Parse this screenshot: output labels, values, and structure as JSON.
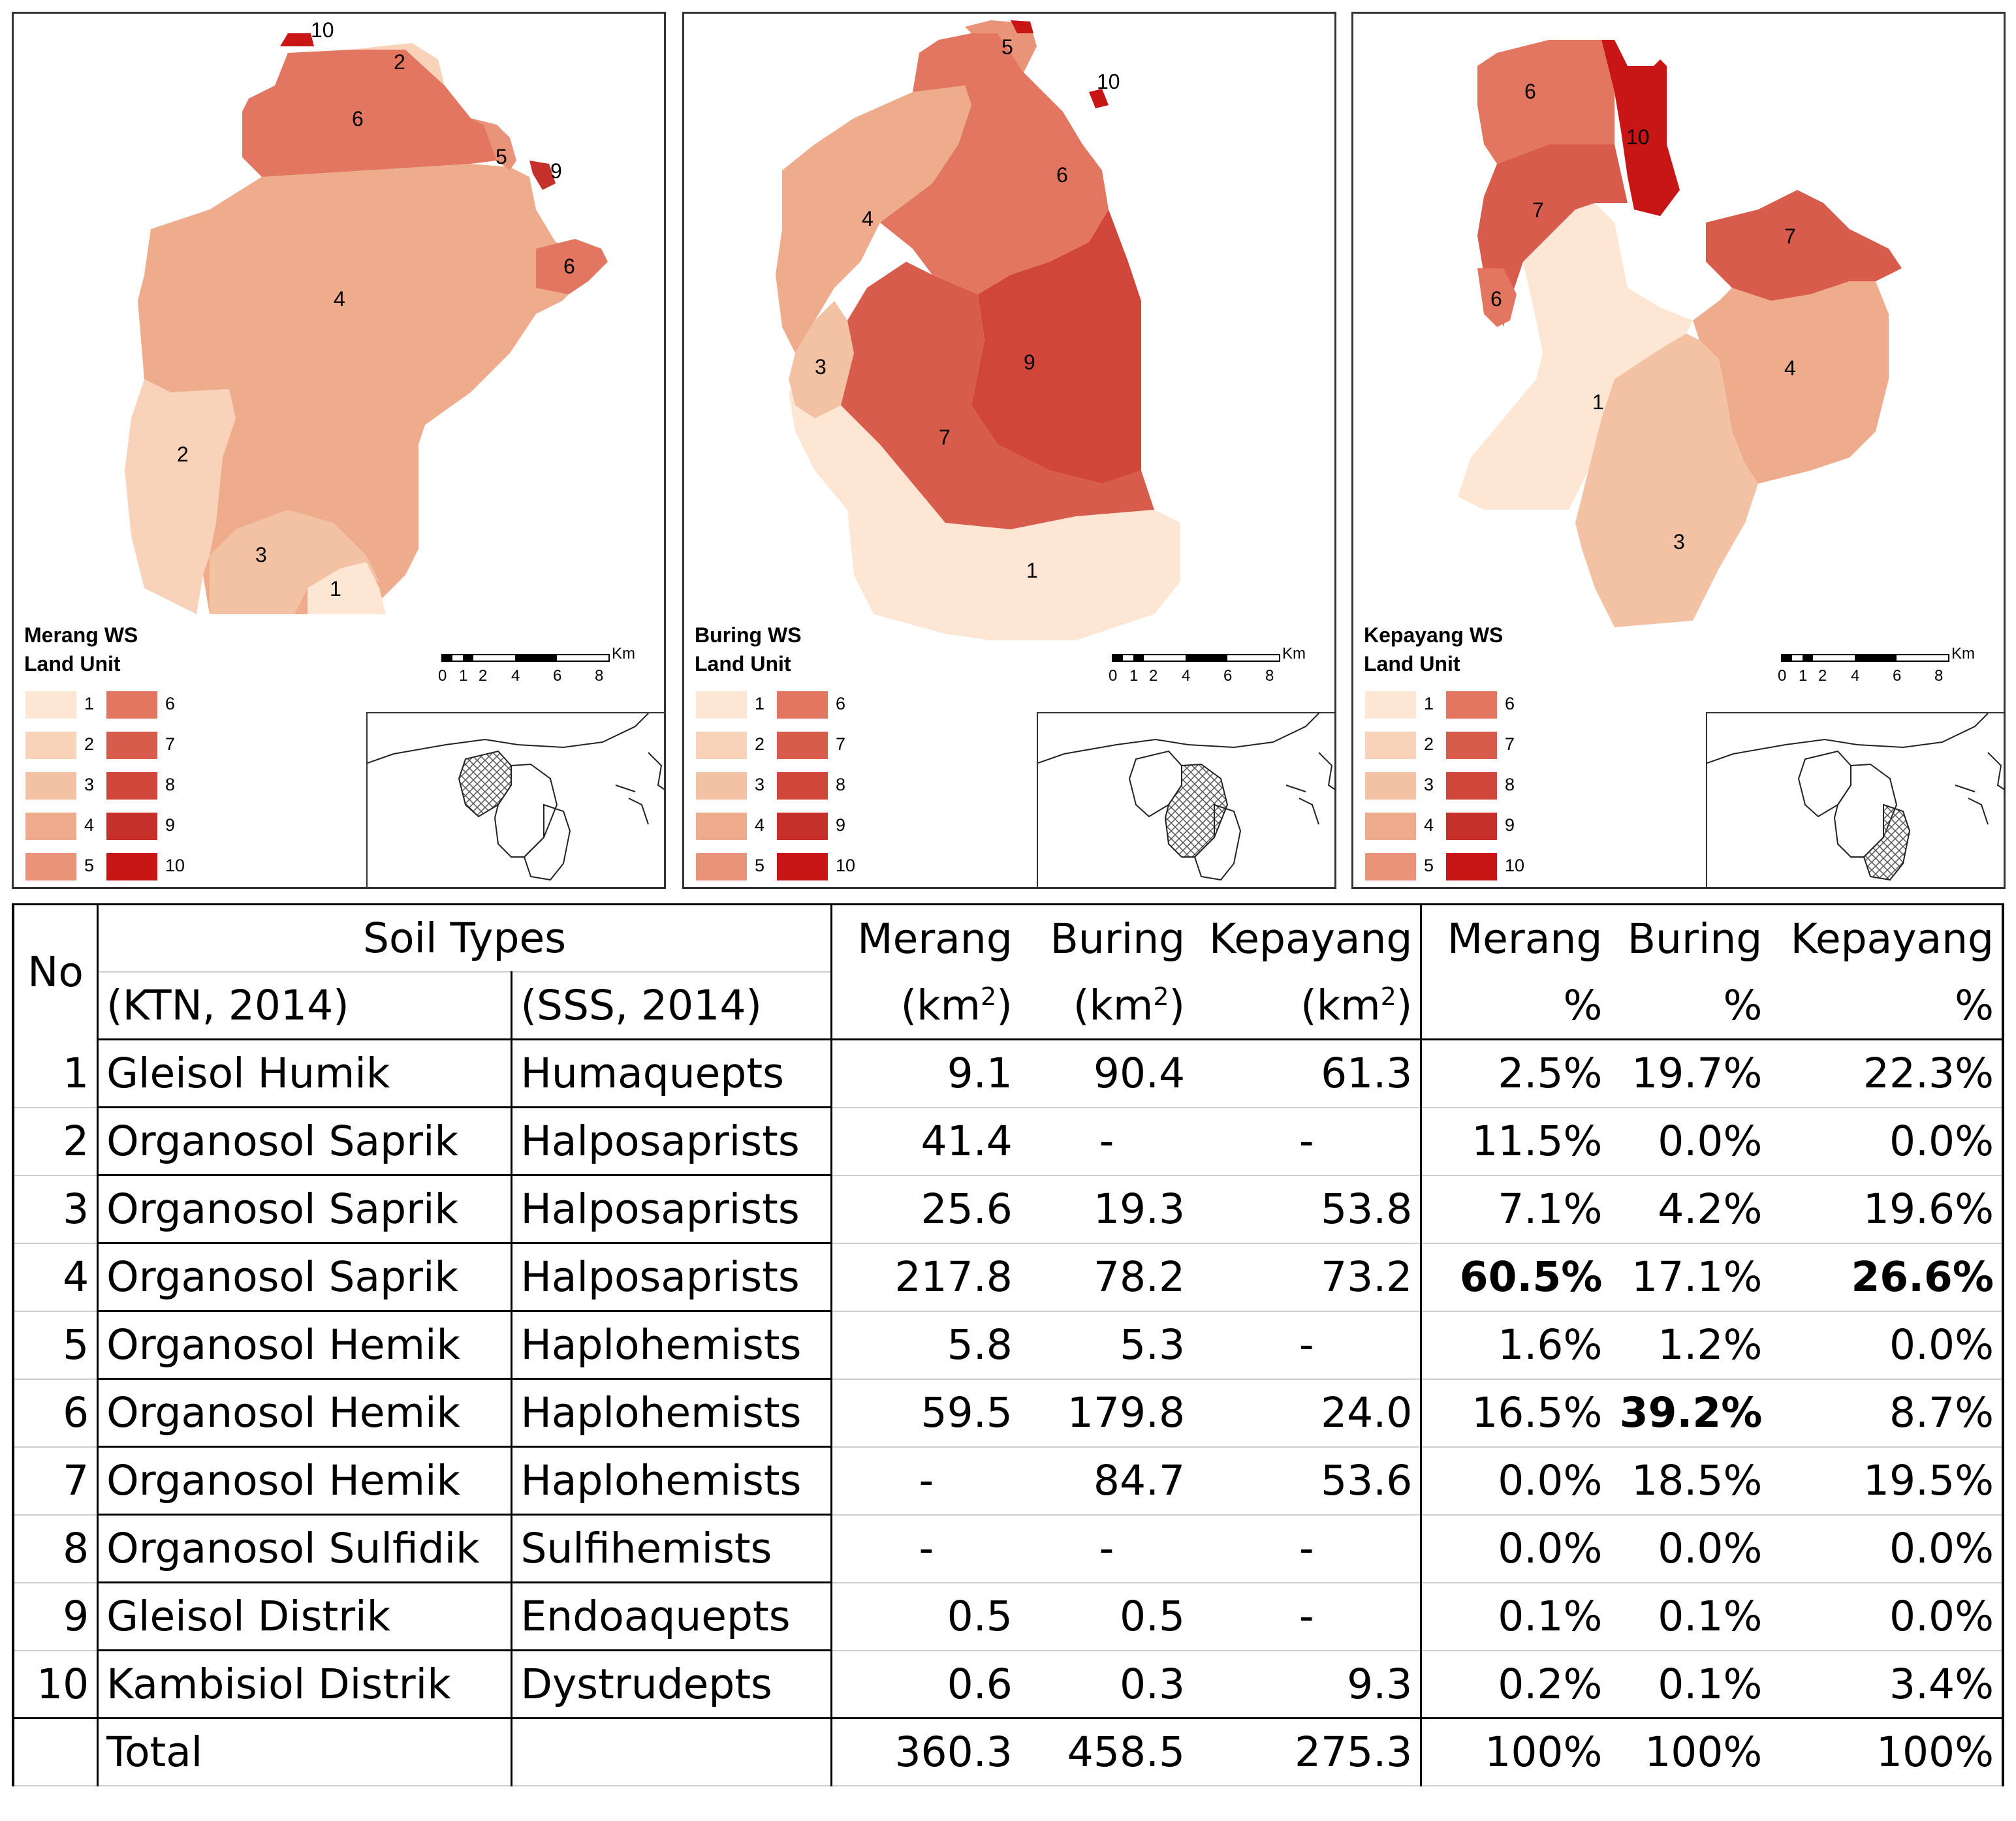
{
  "legend_colors": [
    "#fde7d4",
    "#f8d3b9",
    "#f3c1a3",
    "#eeac8d",
    "#e99378",
    "#e27660",
    "#d85c4c",
    "#d0463b",
    "#c6302b",
    "#c81515"
  ],
  "maps": [
    {
      "title_line1": "Merang WS",
      "title_line2": "Land Unit",
      "region_labels": [
        "10",
        "2",
        "6",
        "5",
        "9",
        "6",
        "4",
        "2",
        "3",
        "1"
      ],
      "legend_labels": [
        "1",
        "2",
        "3",
        "4",
        "5",
        "6",
        "7",
        "8",
        "9",
        "10"
      ],
      "scale_unit": "Km",
      "scale_ticks": [
        "0",
        "1",
        "2",
        "4",
        "6",
        "8"
      ]
    },
    {
      "title_line1": "Buring WS",
      "title_line2": "Land Unit",
      "region_labels": [
        "5",
        "10",
        "6",
        "4",
        "3",
        "9",
        "7",
        "1"
      ],
      "legend_labels": [
        "1",
        "2",
        "3",
        "4",
        "5",
        "6",
        "7",
        "8",
        "9",
        "10"
      ],
      "scale_unit": "Km",
      "scale_ticks": [
        "0",
        "1",
        "2",
        "4",
        "6",
        "8"
      ]
    },
    {
      "title_line1": "Kepayang WS",
      "title_line2": "Land Unit",
      "region_labels": [
        "6",
        "10",
        "7",
        "7",
        "6",
        "4",
        "1",
        "3"
      ],
      "legend_labels": [
        "1",
        "2",
        "3",
        "4",
        "5",
        "6",
        "7",
        "8",
        "9",
        "10"
      ],
      "scale_unit": "Km",
      "scale_ticks": [
        "0",
        "1",
        "2",
        "4",
        "6",
        "8"
      ]
    }
  ],
  "table": {
    "header_no": "No",
    "header_soil_types": "Soil Types",
    "header_ktn": "(KTN, 2014)",
    "header_sss": "(SSS, 2014)",
    "area_cols": [
      "Merang",
      "Buring",
      "Kepayang"
    ],
    "area_unit_pre": "(km",
    "area_unit_sup": "2",
    "area_unit_post": ")",
    "pct_cols": [
      "Merang",
      "Buring",
      "Kepayang"
    ],
    "pct_unit": "%",
    "rows": [
      {
        "no": "1",
        "ktn": "Gleisol Humik",
        "sss": "Humaquepts",
        "merang": "9.1",
        "buring": "90.4",
        "kepayang": "61.3",
        "pm": "2.5%",
        "pb": "19.7%",
        "pk": "22.3%"
      },
      {
        "no": "2",
        "ktn": "Organosol Saprik",
        "sss": "Halposaprists",
        "merang": "41.4",
        "buring": "-",
        "kepayang": "-",
        "pm": "11.5%",
        "pb": "0.0%",
        "pk": "0.0%"
      },
      {
        "no": "3",
        "ktn": "Organosol Saprik",
        "sss": "Halposaprists",
        "merang": "25.6",
        "buring": "19.3",
        "kepayang": "53.8",
        "pm": "7.1%",
        "pb": "4.2%",
        "pk": "19.6%"
      },
      {
        "no": "4",
        "ktn": "Organosol Saprik",
        "sss": "Halposaprists",
        "merang": "217.8",
        "buring": "78.2",
        "kepayang": "73.2",
        "pm": "60.5%",
        "pb": "17.1%",
        "pk": "26.6%"
      },
      {
        "no": "5",
        "ktn": "Organosol Hemik",
        "sss": "Haplohemists",
        "merang": "5.8",
        "buring": "5.3",
        "kepayang": "-",
        "pm": "1.6%",
        "pb": "1.2%",
        "pk": "0.0%"
      },
      {
        "no": "6",
        "ktn": "Organosol Hemik",
        "sss": "Haplohemists",
        "merang": "59.5",
        "buring": "179.8",
        "kepayang": "24.0",
        "pm": "16.5%",
        "pb": "39.2%",
        "pk": "8.7%"
      },
      {
        "no": "7",
        "ktn": "Organosol Hemik",
        "sss": "Haplohemists",
        "merang": "-",
        "buring": "84.7",
        "kepayang": "53.6",
        "pm": "0.0%",
        "pb": "18.5%",
        "pk": "19.5%"
      },
      {
        "no": "8",
        "ktn": "Organosol Sulfidik",
        "sss": "Sulfihemists",
        "merang": "-",
        "buring": "-",
        "kepayang": "-",
        "pm": "0.0%",
        "pb": "0.0%",
        "pk": "0.0%"
      },
      {
        "no": "9",
        "ktn": "Gleisol Distrik",
        "sss": "Endoaquepts",
        "merang": "0.5",
        "buring": "0.5",
        "kepayang": "-",
        "pm": "0.1%",
        "pb": "0.1%",
        "pk": "0.0%"
      },
      {
        "no": "10",
        "ktn": "Kambisiol Distrik",
        "sss": "Dystrudepts",
        "merang": "0.6",
        "buring": "0.3",
        "kepayang": "9.3",
        "pm": "0.2%",
        "pb": "0.1%",
        "pk": "3.4%"
      }
    ],
    "total": {
      "label": "Total",
      "merang": "360.3",
      "buring": "458.5",
      "kepayang": "275.3",
      "pm": "100%",
      "pb": "100%",
      "pk": "100%"
    }
  }
}
